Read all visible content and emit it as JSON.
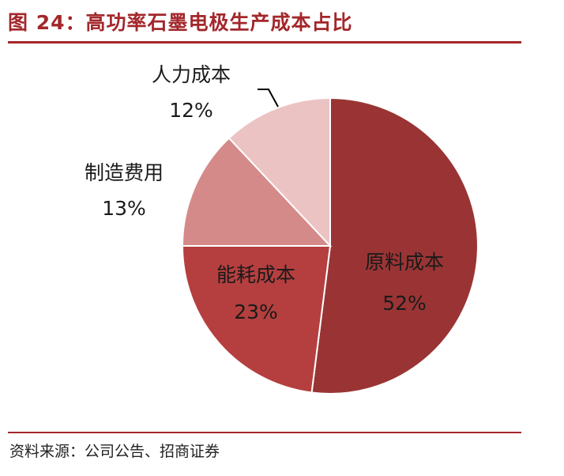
{
  "header": {
    "figure_title": "图 24：高功率石墨电极生产成本占比"
  },
  "footer": {
    "source": "资料来源：公司公告、招商证券"
  },
  "colors": {
    "accent": "#a3272b",
    "slices": [
      "#9a3434",
      "#b53f3f",
      "#d58a8a",
      "#ecc3c3"
    ],
    "label_dark": "#1a1a1a"
  },
  "chart_data": {
    "type": "pie",
    "title": "高功率石墨电极生产成本占比",
    "categories": [
      "原料成本",
      "能耗成本",
      "制造费用",
      "人力成本"
    ],
    "values": [
      52,
      23,
      13,
      12
    ],
    "value_labels": [
      "52%",
      "23%",
      "13%",
      "12%"
    ],
    "unit": "%",
    "start": "12 o'clock, clockwise",
    "legend": "none"
  }
}
